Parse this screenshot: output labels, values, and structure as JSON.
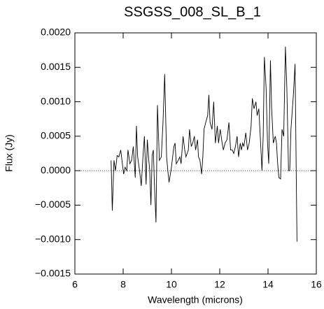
{
  "chart_data": {
    "type": "line",
    "title": "SSGSS_008_SL_B_1",
    "x_label": "Wavelength (microns)",
    "y_label": "Flux (Jy)",
    "color": "#000000",
    "reference_line": 0,
    "xlim": [
      6,
      16
    ],
    "xticks": [
      6,
      8,
      10,
      12,
      14,
      16
    ],
    "ylim": [
      -0.0015,
      0.002
    ],
    "yticks": [
      {
        "value": -0.0015,
        "label": "−0.0015"
      },
      {
        "value": -0.001,
        "label": "−0.0010"
      },
      {
        "value": -0.0005,
        "label": "−0.0005"
      },
      {
        "value": 0,
        "label": "0.0000"
      },
      {
        "value": 0.0005,
        "label": "0.0005"
      },
      {
        "value": 0.001,
        "label": "0.0010"
      },
      {
        "value": 0.0015,
        "label": "0.0015"
      },
      {
        "value": 0.002,
        "label": "0.0020"
      }
    ],
    "x": [
      7.5,
      7.55,
      7.62,
      7.68,
      7.75,
      7.82,
      7.9,
      7.96,
      8.02,
      8.08,
      8.15,
      8.2,
      8.28,
      8.35,
      8.42,
      8.5,
      8.55,
      8.6,
      8.68,
      8.75,
      8.82,
      8.88,
      8.95,
      9.0,
      9.05,
      9.1,
      9.15,
      9.2,
      9.25,
      9.3,
      9.36,
      9.42,
      9.5,
      9.58,
      9.65,
      9.72,
      9.8,
      9.85,
      9.9,
      10.0,
      10.05,
      10.1,
      10.15,
      10.2,
      10.28,
      10.35,
      10.4,
      10.48,
      10.55,
      10.6,
      10.7,
      10.75,
      10.82,
      10.88,
      10.95,
      11.0,
      11.08,
      11.12,
      11.18,
      11.25,
      11.3,
      11.35,
      11.42,
      11.5,
      11.55,
      11.6,
      11.68,
      11.75,
      11.82,
      11.9,
      11.95,
      12.02,
      12.1,
      12.15,
      12.22,
      12.3,
      12.38,
      12.45,
      12.52,
      12.58,
      12.65,
      12.72,
      12.78,
      12.85,
      12.9,
      12.95,
      13.0,
      13.08,
      13.15,
      13.22,
      13.3,
      13.35,
      13.42,
      13.5,
      13.55,
      13.62,
      13.7,
      13.75,
      13.8,
      13.85,
      13.92,
      13.98,
      14.03,
      14.1,
      14.15,
      14.22,
      14.3,
      14.35,
      14.4,
      14.45,
      14.52,
      14.58,
      14.65,
      14.72,
      14.78,
      14.85,
      14.9,
      14.95,
      15.05,
      15.12,
      15.2
    ],
    "values": [
      0.00015,
      -0.00058,
      0.00015,
      0.0,
      0.00022,
      0.0002,
      0.0003,
      0.00012,
      -5e-05,
      5e-05,
      0.0,
      0.0003,
      0.0001,
      0.00015,
      0.00035,
      -0.0001,
      0.00065,
      0.0002,
      0.0,
      -0.00022,
      0.0002,
      0.0005,
      -0.0002,
      0.00045,
      0.0002,
      0.0,
      -0.0005,
      0.00022,
      0.0003,
      -0.00025,
      -0.00075,
      0.00095,
      0.00015,
      0.0002,
      0.0007,
      0.0014,
      0.0002,
      0.0,
      -0.00017,
      5e-05,
      0.0002,
      0.00035,
      0.0004,
      0.0001,
      0.00015,
      0.0002,
      0.0001,
      0.0005,
      0.0003,
      0.0002,
      0.0003,
      0.0006,
      0.00035,
      0.0004,
      0.0005,
      0.0003,
      0.00045,
      0.0002,
      0.00015,
      -5e-05,
      0.0002,
      0.0006,
      0.0007,
      0.0008,
      0.0011,
      0.0007,
      0.0006,
      0.001,
      0.0004,
      0.00065,
      0.0004,
      0.0006,
      0.0004,
      0.0003,
      0.0004,
      0.00045,
      0.0007,
      0.0003,
      0.0003,
      0.00025,
      0.00035,
      0.0005,
      0.0002,
      0.0004,
      0.0003,
      0.0004,
      0.00035,
      0.00055,
      0.0003,
      0.0004,
      0.00065,
      0.00105,
      0.0009,
      0.001,
      0.0008,
      0.0009,
      0.00035,
      0.0,
      0.0005,
      0.00165,
      0.0012,
      0.0004,
      0.0001,
      0.0016,
      0.0009,
      0.0004,
      0.0005,
      0.0004,
      0.0001,
      -0.0001,
      -0.00012,
      0.0006,
      0.0005,
      0.0018,
      0.0012,
      0.0,
      0.0,
      0.0006,
      0.0011,
      0.00155,
      -0.00103
    ]
  }
}
